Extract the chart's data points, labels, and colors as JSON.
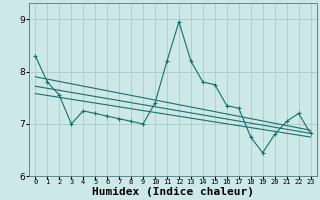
{
  "title": "",
  "xlabel": "Humidex (Indice chaleur)",
  "ylabel": "",
  "bg_color": "#cce8e8",
  "grid_color": "#aacccc",
  "line_color": "#1a6e6a",
  "xlim": [
    -0.5,
    23.5
  ],
  "ylim": [
    6.0,
    9.3
  ],
  "yticks": [
    6,
    7,
    8,
    9
  ],
  "xtick_labels": [
    "0",
    "1",
    "2",
    "3",
    "4",
    "5",
    "6",
    "7",
    "8",
    "9",
    "10",
    "11",
    "12",
    "13",
    "14",
    "15",
    "16",
    "17",
    "18",
    "19",
    "20",
    "21",
    "22",
    "23"
  ],
  "series1": [
    8.3,
    7.8,
    7.55,
    7.0,
    7.25,
    7.2,
    7.15,
    7.1,
    7.05,
    7.0,
    7.4,
    8.2,
    8.95,
    8.2,
    7.8,
    7.75,
    7.35,
    7.3,
    6.75,
    6.45,
    6.8,
    7.05,
    7.2,
    6.82
  ],
  "series2_x": [
    0,
    23
  ],
  "series2_y": [
    7.9,
    6.88
  ],
  "series3_x": [
    0,
    23
  ],
  "series3_y": [
    7.72,
    6.82
  ],
  "series4_x": [
    0,
    23
  ],
  "series4_y": [
    7.58,
    6.75
  ],
  "font_size": 7,
  "xlabel_fontsize": 8
}
